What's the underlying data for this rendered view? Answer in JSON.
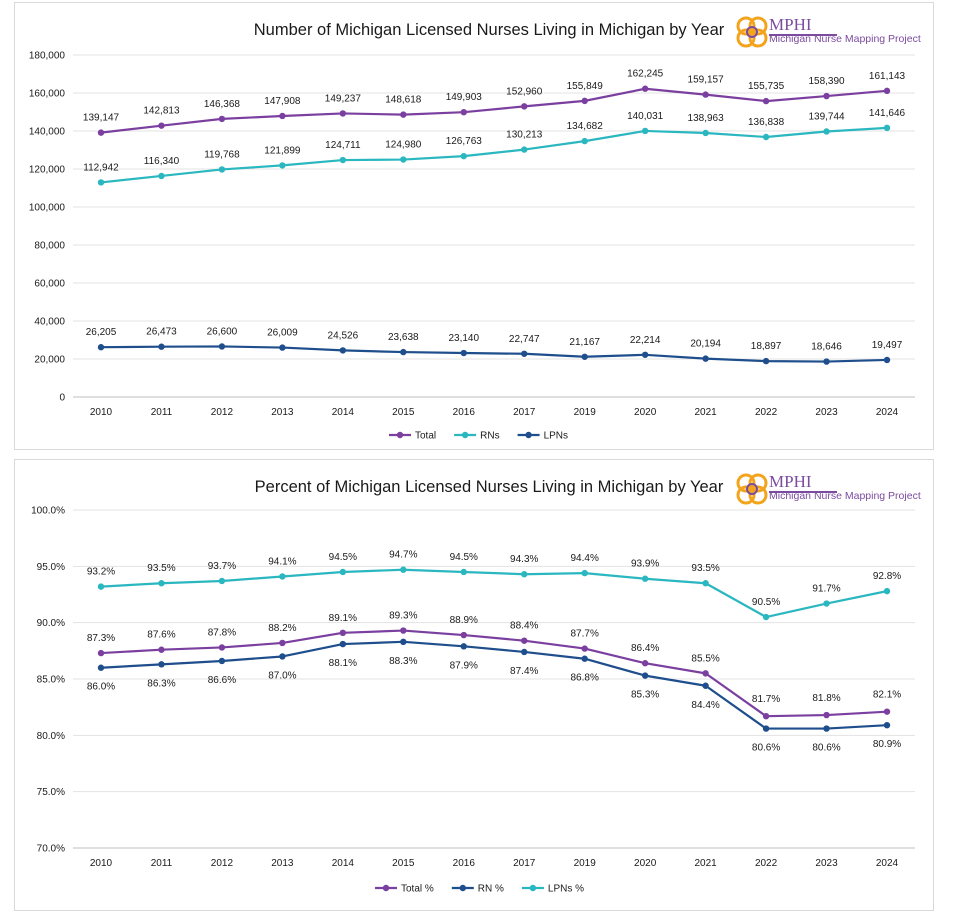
{
  "chart_data": [
    {
      "type": "line",
      "title": "Number of Michigan Licensed Nurses Living in Michigan by Year",
      "categories": [
        "2010",
        "2011",
        "2012",
        "2013",
        "2014",
        "2015",
        "2016",
        "2017",
        "2019",
        "2020",
        "2021",
        "2022",
        "2023",
        "2024"
      ],
      "series": [
        {
          "name": "Total",
          "color": "#7b3fa0",
          "values": [
            139147,
            142813,
            146368,
            147908,
            149237,
            148618,
            149903,
            152960,
            155849,
            162245,
            159157,
            155735,
            158390,
            161143
          ],
          "labels": [
            "139,147",
            "142,813",
            "146,368",
            "147,908",
            "149,237",
            "148,618",
            "149,903",
            "152,960",
            "155,849",
            "162,245",
            "159,157",
            "155,735",
            "158,390",
            "161,143"
          ]
        },
        {
          "name": "RNs",
          "color": "#2ab7c0",
          "values": [
            112942,
            116340,
            119768,
            121899,
            124711,
            124980,
            126763,
            130213,
            134682,
            140031,
            138963,
            136838,
            139744,
            141646
          ],
          "labels": [
            "112,942",
            "116,340",
            "119,768",
            "121,899",
            "124,711",
            "124,980",
            "126,763",
            "130,213",
            "134,682",
            "140,031",
            "138,963",
            "136,838",
            "139,744",
            "141,646"
          ]
        },
        {
          "name": "LPNs",
          "color": "#1f4e8c",
          "values": [
            26205,
            26473,
            26600,
            26009,
            24526,
            23638,
            23140,
            22747,
            21167,
            22214,
            20194,
            18897,
            18646,
            19497
          ],
          "labels": [
            "26,205",
            "26,473",
            "26,600",
            "26,009",
            "24,526",
            "23,638",
            "23,140",
            "22,747",
            "21,167",
            "22,214",
            "20,194",
            "18,897",
            "18,646",
            "19,497"
          ]
        }
      ],
      "ylim": [
        0,
        180000
      ],
      "yticks": [
        "0",
        "20,000",
        "40,000",
        "60,000",
        "80,000",
        "100,000",
        "120,000",
        "140,000",
        "160,000",
        "180,000"
      ],
      "grid": true,
      "legend": "bottom"
    },
    {
      "type": "line",
      "title": "Percent of Michigan Licensed Nurses Living in Michigan by Year",
      "categories": [
        "2010",
        "2011",
        "2012",
        "2013",
        "2014",
        "2015",
        "2016",
        "2017",
        "2019",
        "2020",
        "2021",
        "2022",
        "2023",
        "2024"
      ],
      "series": [
        {
          "name": "Total %",
          "color": "#7b3fa0",
          "values": [
            87.3,
            87.6,
            87.8,
            88.2,
            89.1,
            89.3,
            88.9,
            88.4,
            87.7,
            86.4,
            85.5,
            81.7,
            81.8,
            82.1
          ],
          "labels": [
            "87.3%",
            "87.6%",
            "87.8%",
            "88.2%",
            "89.1%",
            "89.3%",
            "88.9%",
            "88.4%",
            "87.7%",
            "86.4%",
            "85.5%",
            "81.7%",
            "81.8%",
            "82.1%"
          ]
        },
        {
          "name": "RN %",
          "color": "#1f4e8c",
          "values": [
            86.0,
            86.3,
            86.6,
            87.0,
            88.1,
            88.3,
            87.9,
            87.4,
            86.8,
            85.3,
            84.4,
            80.6,
            80.6,
            80.9
          ],
          "labels": [
            "86.0%",
            "86.3%",
            "86.6%",
            "87.0%",
            "88.1%",
            "88.3%",
            "87.9%",
            "87.4%",
            "86.8%",
            "85.3%",
            "84.4%",
            "80.6%",
            "80.6%",
            "80.9%"
          ]
        },
        {
          "name": "LPNs %",
          "color": "#2ab7c0",
          "values": [
            93.2,
            93.5,
            93.7,
            94.1,
            94.5,
            94.7,
            94.5,
            94.3,
            94.4,
            93.9,
            93.5,
            90.5,
            91.7,
            92.8
          ],
          "labels": [
            "93.2%",
            "93.5%",
            "93.7%",
            "94.1%",
            "94.5%",
            "94.7%",
            "94.5%",
            "94.3%",
            "94.4%",
            "93.9%",
            "93.5%",
            "90.5%",
            "91.7%",
            "92.8%"
          ]
        }
      ],
      "ylim": [
        70,
        100
      ],
      "yticks": [
        "70.0%",
        "75.0%",
        "80.0%",
        "85.0%",
        "90.0%",
        "95.0%",
        "100.0%"
      ],
      "grid": true,
      "legend": "bottom"
    }
  ],
  "logo": {
    "name": "MPHI",
    "subtitle": "Michigan Nurse Mapping Project",
    "color": "#7b4ba0",
    "accent": "#f2a51c"
  }
}
